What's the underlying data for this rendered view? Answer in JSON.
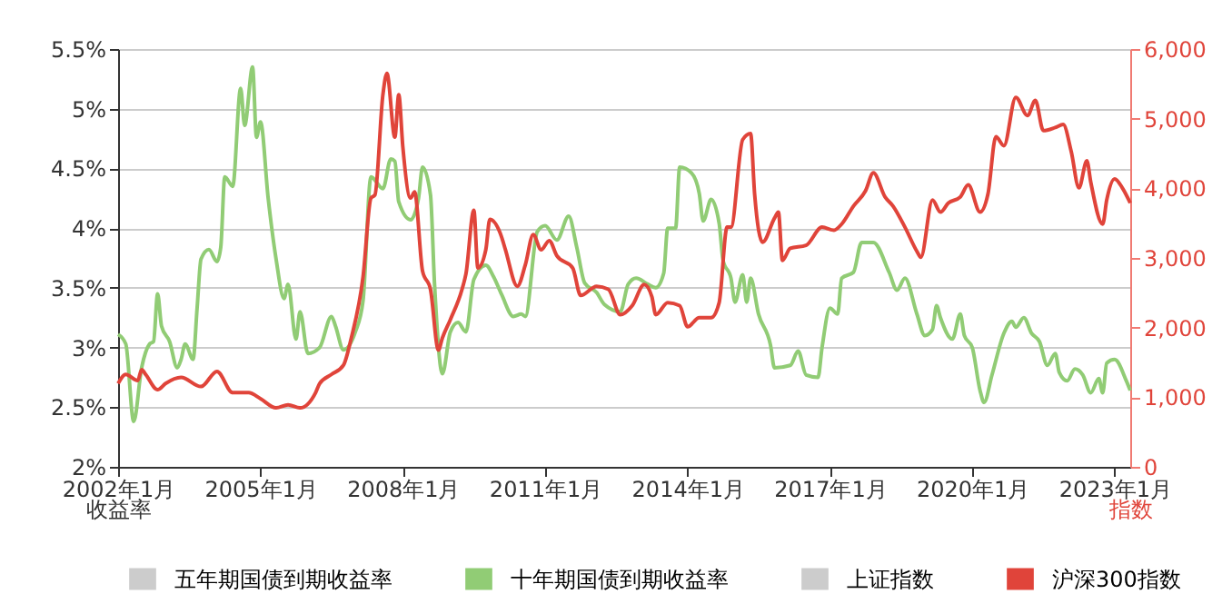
{
  "chart_data": {
    "type": "line",
    "ylabel": "收益率",
    "y2label": "指数",
    "xlim": [
      "2002-01",
      "2023-05"
    ],
    "xticks": [
      {
        "value": "2002-01",
        "label": "2002年1月"
      },
      {
        "value": "2005-01",
        "label": "2005年1月"
      },
      {
        "value": "2008-01",
        "label": "2008年1月"
      },
      {
        "value": "2011-01",
        "label": "2011年1月"
      },
      {
        "value": "2014-01",
        "label": "2014年1月"
      },
      {
        "value": "2017-01",
        "label": "2017年1月"
      },
      {
        "value": "2020-01",
        "label": "2020年1月"
      },
      {
        "value": "2023-01",
        "label": "2023年1月"
      }
    ],
    "ylim": [
      2,
      5.5
    ],
    "yticks": [
      {
        "value": 2,
        "label": "2%"
      },
      {
        "value": 2.5,
        "label": "2.5%"
      },
      {
        "value": 3,
        "label": "3%"
      },
      {
        "value": 3.5,
        "label": "3.5%"
      },
      {
        "value": 4,
        "label": "4%"
      },
      {
        "value": 4.5,
        "label": "4.5%"
      },
      {
        "value": 5,
        "label": "5%"
      },
      {
        "value": 5.5,
        "label": "5.5%"
      }
    ],
    "y2lim": [
      0,
      6000
    ],
    "y2ticks": [
      0,
      {
        "value": 1000,
        "label": "1,000"
      },
      {
        "value": 2000,
        "label": "2,000"
      },
      {
        "value": 3000,
        "label": "3,000"
      },
      {
        "value": 4000,
        "label": "4,000"
      },
      {
        "value": 5000,
        "label": "5,000"
      },
      {
        "value": 6000,
        "label": "6,000"
      }
    ],
    "grid": "y",
    "legend": "bottom",
    "series": [
      {
        "name": "五年期国债到期收益率",
        "color": "#cccccc"
      },
      {
        "name": "十年期国债到期收益率",
        "color": "#91cc75",
        "x": [
          "2002-01",
          "2002-03",
          "2002-05",
          "2002-07",
          "2002-09",
          "2002-10",
          "2002-11",
          "2002-12",
          "2003-02",
          "2003-04",
          "2003-05",
          "2003-06",
          "2003-08",
          "2003-09",
          "2003-10",
          "2003-12",
          "2004-02",
          "2004-03",
          "2004-04",
          "2004-06",
          "2004-08",
          "2004-09",
          "2004-11",
          "2004-12",
          "2005-01",
          "2005-03",
          "2005-05",
          "2005-07",
          "2005-08",
          "2005-10",
          "2005-11",
          "2006-01",
          "2006-04",
          "2006-07",
          "2006-08",
          "2006-10",
          "2007-01",
          "2007-03",
          "2007-05",
          "2007-08",
          "2007-10",
          "2007-11",
          "2007-12",
          "2008-03",
          "2008-05",
          "2008-06",
          "2008-08",
          "2008-09",
          "2008-11",
          "2009-01",
          "2009-03",
          "2009-05",
          "2009-07",
          "2009-10",
          "2009-12",
          "2010-02",
          "2010-05",
          "2010-07",
          "2010-08",
          "2010-11",
          "2011-01",
          "2011-04",
          "2011-07",
          "2011-09",
          "2011-11",
          "2012-02",
          "2012-04",
          "2012-08",
          "2012-10",
          "2012-12",
          "2013-03",
          "2013-05",
          "2013-07",
          "2013-08",
          "2013-10",
          "2013-11",
          "2014-02",
          "2014-04",
          "2014-05",
          "2014-07",
          "2014-09",
          "2014-10",
          "2014-12",
          "2015-01",
          "2015-03",
          "2015-04",
          "2015-05",
          "2015-07",
          "2015-10",
          "2015-11",
          "2016-03",
          "2016-05",
          "2016-07",
          "2016-10",
          "2016-11",
          "2017-01",
          "2017-03",
          "2017-04",
          "2017-07",
          "2017-09",
          "2017-12",
          "2018-04",
          "2018-06",
          "2018-08",
          "2018-11",
          "2019-01",
          "2019-03",
          "2019-04",
          "2019-05",
          "2019-08",
          "2019-10",
          "2019-11",
          "2020-01",
          "2020-03",
          "2020-04",
          "2020-06",
          "2020-09",
          "2020-11",
          "2020-12",
          "2021-02",
          "2021-04",
          "2021-06",
          "2021-08",
          "2021-10",
          "2021-11",
          "2022-01",
          "2022-03",
          "2022-05",
          "2022-07",
          "2022-09",
          "2022-10",
          "2022-11",
          "2023-01",
          "2023-04",
          "2023-05"
        ],
        "values": [
          3.11,
          3.03,
          2.38,
          2.83,
          3.03,
          3.05,
          3.45,
          3.18,
          3.05,
          2.83,
          2.9,
          3.03,
          2.9,
          3.33,
          3.74,
          3.82,
          3.72,
          3.84,
          4.43,
          4.35,
          5.17,
          4.86,
          5.35,
          4.76,
          4.89,
          4.25,
          3.74,
          3.41,
          3.53,
          3.07,
          3.3,
          2.95,
          3.0,
          3.26,
          3.18,
          2.98,
          3.13,
          3.39,
          4.43,
          4.33,
          4.58,
          4.56,
          4.22,
          4.07,
          4.25,
          4.51,
          4.28,
          3.54,
          2.78,
          3.13,
          3.21,
          3.13,
          3.57,
          3.69,
          3.59,
          3.44,
          3.26,
          3.28,
          3.26,
          3.97,
          4.02,
          3.9,
          4.1,
          3.84,
          3.54,
          3.46,
          3.36,
          3.3,
          3.53,
          3.58,
          3.53,
          3.5,
          3.62,
          4.0,
          4.0,
          4.51,
          4.46,
          4.29,
          4.06,
          4.24,
          4.04,
          3.73,
          3.58,
          3.38,
          3.61,
          3.38,
          3.58,
          3.28,
          3.02,
          2.83,
          2.85,
          2.97,
          2.77,
          2.75,
          3.0,
          3.33,
          3.28,
          3.58,
          3.63,
          3.88,
          3.88,
          3.63,
          3.48,
          3.58,
          3.28,
          3.1,
          3.15,
          3.35,
          3.25,
          3.07,
          3.28,
          3.1,
          3.0,
          2.64,
          2.54,
          2.77,
          3.12,
          3.22,
          3.17,
          3.25,
          3.12,
          3.05,
          2.85,
          2.95,
          2.79,
          2.72,
          2.82,
          2.77,
          2.62,
          2.74,
          2.62,
          2.87,
          2.9,
          2.72,
          2.64
        ]
      },
      {
        "name": "上证指数",
        "color": "#cccccc",
        "axis": "y2"
      },
      {
        "name": "沪深300指数",
        "color": "#e0443a",
        "axis": "y2",
        "x": [
          "2002-01",
          "2002-03",
          "2002-06",
          "2002-07",
          "2002-08",
          "2002-11",
          "2003-01",
          "2003-05",
          "2003-10",
          "2004-02",
          "2004-06",
          "2004-10",
          "2005-01",
          "2005-05",
          "2005-08",
          "2005-11",
          "2006-03",
          "2006-04",
          "2006-07",
          "2006-10",
          "2006-12",
          "2007-03",
          "2007-05",
          "2007-06",
          "2007-08",
          "2007-09",
          "2007-11",
          "2007-12",
          "2008-01",
          "2008-03",
          "2008-04",
          "2008-06",
          "2008-08",
          "2008-10",
          "2008-11",
          "2009-01",
          "2009-04",
          "2009-05",
          "2009-07",
          "2009-08",
          "2009-10",
          "2009-11",
          "2010-02",
          "2010-03",
          "2010-06",
          "2010-08",
          "2010-10",
          "2010-12",
          "2011-02",
          "2011-04",
          "2011-08",
          "2011-10",
          "2012-02",
          "2012-05",
          "2012-08",
          "2012-11",
          "2013-02",
          "2013-04",
          "2013-05",
          "2013-08",
          "2013-11",
          "2014-01",
          "2014-04",
          "2014-07",
          "2014-09",
          "2014-11",
          "2014-12",
          "2015-03",
          "2015-05",
          "2015-06",
          "2015-08",
          "2015-11",
          "2015-12",
          "2016-01",
          "2016-03",
          "2016-07",
          "2016-11",
          "2017-02",
          "2017-04",
          "2017-07",
          "2017-10",
          "2017-12",
          "2018-03",
          "2018-05",
          "2018-08",
          "2018-11",
          "2018-12",
          "2019-03",
          "2019-05",
          "2019-07",
          "2019-10",
          "2019-12",
          "2020-03",
          "2020-05",
          "2020-07",
          "2020-09",
          "2020-12",
          "2021-03",
          "2021-05",
          "2021-07",
          "2021-10",
          "2021-12",
          "2022-02",
          "2022-04",
          "2022-06",
          "2022-07",
          "2022-10",
          "2022-11",
          "2023-01",
          "2023-03",
          "2023-05"
        ],
        "values": [
          1196,
          1327,
          1240,
          1397,
          1327,
          1109,
          1196,
          1284,
          1153,
          1371,
          1065,
          1065,
          978,
          847,
          891,
          847,
          1065,
          1196,
          1327,
          1458,
          1852,
          2725,
          3860,
          3904,
          5345,
          5651,
          4734,
          5345,
          4603,
          3860,
          3948,
          2812,
          2550,
          1677,
          1852,
          2114,
          2550,
          2769,
          3686,
          2856,
          3118,
          3555,
          3293,
          3118,
          2594,
          2900,
          3336,
          3118,
          3249,
          3031,
          2856,
          2463,
          2594,
          2550,
          2185,
          2315,
          2618,
          2445,
          2185,
          2358,
          2315,
          2012,
          2142,
          2142,
          2358,
          3442,
          3442,
          4699,
          4786,
          3919,
          3225,
          3572,
          3659,
          2965,
          3139,
          3182,
          3442,
          3399,
          3486,
          3746,
          3962,
          4222,
          3876,
          3746,
          3442,
          3095,
          3009,
          3832,
          3659,
          3789,
          3876,
          4049,
          3659,
          3919,
          4742,
          4612,
          5306,
          5046,
          5263,
          4829,
          4873,
          4916,
          4526,
          4006,
          4396,
          4092,
          3486,
          3832,
          4136,
          4006,
          3789
        ]
      }
    ]
  }
}
